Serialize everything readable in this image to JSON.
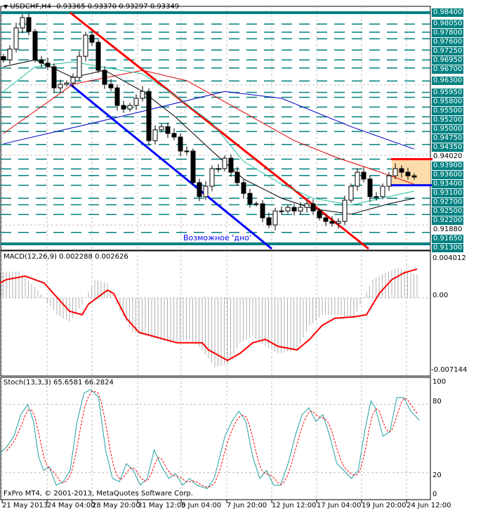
{
  "header": {
    "symbol": "USDCHF,H4",
    "ohlc": "0.93365 0.93370 0.93297 0.93349"
  },
  "colors": {
    "level": "#008080",
    "trend_red": "#ff0000",
    "trend_blue": "#0000ff",
    "ma_blue": "#0000cc",
    "ma_red": "#dd0000",
    "ma_green": "#20c0a0",
    "ma_black": "#000000",
    "box": "#fddcaa",
    "macd_hist": "#b0b0b0",
    "macd_signal": "#ff0000",
    "stoch_main": "#20a0a0",
    "stoch_signal": "#ff0000"
  },
  "annotation": "Возможное 'дно'",
  "copyright": "FxPro MT4, © 2001-2013, MetaQuotes Software Corp.",
  "chart_data": [
    {
      "type": "candlestick",
      "title": "USDCHF,H4",
      "ylim": [
        0.913,
        0.984
      ],
      "price_levels": [
        "0.98400",
        "0.98050",
        "0.97800",
        "0.97600",
        "0.97250",
        "0.96950",
        "0.96700",
        "0.96300",
        "0.95950",
        "0.95800",
        "0.95500",
        "0.95200",
        "0.95000",
        "0.94750",
        "0.94350",
        "0.93900",
        "0.93600",
        "0.93400",
        "0.93100",
        "0.92700",
        "0.92500",
        "0.92200",
        "0.91650",
        "0.91300"
      ],
      "axis_labels_plain": [
        "0.91880",
        "0.94020"
      ],
      "closes": [
        0.9695,
        0.9728,
        0.9793,
        0.9825,
        0.9782,
        0.9695,
        0.9685,
        0.9674,
        0.9609,
        0.962,
        0.9624,
        0.9641,
        0.9706,
        0.9771,
        0.9749,
        0.9663,
        0.962,
        0.9609,
        0.9555,
        0.9544,
        0.9555,
        0.9577,
        0.9598,
        0.9447,
        0.948,
        0.949,
        0.9469,
        0.9458,
        0.9415,
        0.9415,
        0.9318,
        0.9275,
        0.9307,
        0.9361,
        0.9361,
        0.9393,
        0.935,
        0.9318,
        0.9285,
        0.9253,
        0.9253,
        0.921,
        0.9188,
        0.9231,
        0.9231,
        0.9242,
        0.9231,
        0.9242,
        0.9253,
        0.9231,
        0.921,
        0.9199,
        0.9193,
        0.9199,
        0.9264,
        0.9307,
        0.935,
        0.9329,
        0.9275,
        0.9275,
        0.9307,
        0.9339,
        0.9361,
        0.935,
        0.9339,
        0.9335
      ],
      "moving_averages": [
        {
          "color": "ma_blue",
          "points": [
            [
              0,
              0.9437
            ],
            [
              19,
              0.9523
            ],
            [
              35,
              0.9598
            ],
            [
              44,
              0.9577
            ],
            [
              55,
              0.949
            ],
            [
              65,
              0.9421
            ]
          ]
        },
        {
          "color": "ma_red",
          "points": [
            [
              0,
              0.9469
            ],
            [
              11,
              0.962
            ],
            [
              22,
              0.9663
            ],
            [
              29,
              0.9631
            ],
            [
              38,
              0.9534
            ],
            [
              46,
              0.9447
            ],
            [
              53,
              0.9393
            ],
            [
              58,
              0.9361
            ],
            [
              65,
              0.9313
            ]
          ]
        },
        {
          "color": "ma_green",
          "points": [
            [
              0,
              0.9598
            ],
            [
              5,
              0.9674
            ],
            [
              11,
              0.9689
            ],
            [
              22,
              0.9652
            ],
            [
              27,
              0.9588
            ],
            [
              33,
              0.9501
            ],
            [
              38,
              0.9383
            ],
            [
              44,
              0.9313
            ],
            [
              49,
              0.927
            ],
            [
              55,
              0.9249
            ],
            [
              61,
              0.9275
            ],
            [
              65,
              0.9292
            ]
          ]
        },
        {
          "color": "ma_black",
          "points": [
            [
              0,
              0.9674
            ],
            [
              5,
              0.9695
            ],
            [
              11,
              0.9641
            ],
            [
              16,
              0.9663
            ],
            [
              22,
              0.9598
            ],
            [
              27,
              0.9523
            ],
            [
              33,
              0.9415
            ],
            [
              38,
              0.9329
            ],
            [
              44,
              0.927
            ],
            [
              49,
              0.9238
            ],
            [
              55,
              0.9221
            ],
            [
              61,
              0.9253
            ],
            [
              65,
              0.927
            ]
          ]
        }
      ],
      "x_tick_labels": [
        "21 May 2013",
        "24 May 04:00",
        "28 May 20:00",
        "31 May 12:00",
        "5 Jun 04:00",
        "7 Jun 20:00",
        "12 Jun 12:00",
        "17 Jun 04:00",
        "19 Jun 20:00",
        "24 Jun 12:00"
      ]
    },
    {
      "type": "bar+line",
      "title": "MACD(12,26,9) 0.002288 0.002626",
      "ylim": [
        -0.007144,
        0.004012
      ],
      "y_tick_labels": [
        "0.004012",
        "0.00",
        "-0.007144"
      ],
      "macd": [
        [
          0,
          0.00249
        ],
        [
          3,
          0.00263
        ],
        [
          6,
          0.00076
        ],
        [
          9,
          -0.00166
        ],
        [
          11,
          -0.00236
        ],
        [
          13,
          -0.00062
        ],
        [
          15,
          0.0018
        ],
        [
          17,
          0.00146
        ],
        [
          19,
          -0.00132
        ],
        [
          21,
          -0.0034
        ],
        [
          23,
          -0.00374
        ],
        [
          27,
          -0.00443
        ],
        [
          30,
          -0.00409
        ],
        [
          32,
          -0.00513
        ],
        [
          34,
          -0.00686
        ],
        [
          36,
          -0.00651
        ],
        [
          38,
          -0.00443
        ],
        [
          40,
          -0.00374
        ],
        [
          42,
          -0.00478
        ],
        [
          44,
          -0.00547
        ],
        [
          47,
          -0.00513
        ],
        [
          49,
          -0.0027
        ],
        [
          51,
          -0.00166
        ],
        [
          53,
          -0.00166
        ],
        [
          56,
          -0.00201
        ],
        [
          57,
          -0.00062
        ],
        [
          59,
          0.0018
        ],
        [
          61,
          0.00249
        ],
        [
          63,
          0.00298
        ],
        [
          66,
          0.00229
        ]
      ],
      "signal": [
        [
          0,
          0.00146
        ],
        [
          1,
          0.0018
        ],
        [
          4,
          0.00215
        ],
        [
          7,
          0.00146
        ],
        [
          9,
          7e-05
        ],
        [
          11,
          -0.00132
        ],
        [
          13,
          -0.00166
        ],
        [
          14,
          -0.00062
        ],
        [
          17,
          0.00076
        ],
        [
          18,
          0.00042
        ],
        [
          20,
          -0.00201
        ],
        [
          22,
          -0.0034
        ],
        [
          24,
          -0.00374
        ],
        [
          28,
          -0.00443
        ],
        [
          29,
          -0.00443
        ],
        [
          32,
          -0.00443
        ],
        [
          33,
          -0.00513
        ],
        [
          36,
          -0.00617
        ],
        [
          38,
          -0.00547
        ],
        [
          40,
          -0.00443
        ],
        [
          42,
          -0.00409
        ],
        [
          44,
          -0.00478
        ],
        [
          47,
          -0.00513
        ],
        [
          49,
          -0.00409
        ],
        [
          51,
          -0.0027
        ],
        [
          53,
          -0.00201
        ],
        [
          56,
          -0.00187
        ],
        [
          58,
          -0.00166
        ],
        [
          60,
          0.00042
        ],
        [
          62,
          0.0018
        ],
        [
          64,
          0.00249
        ],
        [
          66,
          0.00284
        ]
      ]
    },
    {
      "type": "line",
      "title": "Stoch(13,3,3) 65.6581 66.2824",
      "ylim": [
        0,
        100
      ],
      "y_tick_labels": [
        "100",
        "80",
        "20",
        "0"
      ],
      "levels": [
        80,
        20
      ],
      "k": [
        [
          0,
          37
        ],
        [
          1.1,
          43
        ],
        [
          2.2,
          52
        ],
        [
          3.3,
          71
        ],
        [
          4.4,
          80
        ],
        [
          5.3,
          65
        ],
        [
          6.1,
          34
        ],
        [
          6.9,
          22
        ],
        [
          7.8,
          25
        ],
        [
          8.9,
          9
        ],
        [
          10,
          12
        ],
        [
          11.1,
          22
        ],
        [
          12.2,
          65
        ],
        [
          13.3,
          90
        ],
        [
          14.4,
          93
        ],
        [
          15.6,
          86
        ],
        [
          16.7,
          40
        ],
        [
          17.8,
          15
        ],
        [
          18.9,
          12
        ],
        [
          20,
          28
        ],
        [
          21.1,
          22
        ],
        [
          22.2,
          9
        ],
        [
          23.3,
          15
        ],
        [
          24.4,
          40
        ],
        [
          25.6,
          25
        ],
        [
          26.7,
          15
        ],
        [
          27.8,
          19
        ],
        [
          28.9,
          9
        ],
        [
          30,
          15
        ],
        [
          31.1,
          9
        ],
        [
          32.8,
          6
        ],
        [
          33.9,
          15
        ],
        [
          35.6,
          52
        ],
        [
          36.7,
          65
        ],
        [
          37.8,
          74
        ],
        [
          38.9,
          65
        ],
        [
          40,
          34
        ],
        [
          41.1,
          15
        ],
        [
          42.2,
          22
        ],
        [
          43.3,
          9
        ],
        [
          44.4,
          9
        ],
        [
          45.6,
          28
        ],
        [
          46.7,
          52
        ],
        [
          47.8,
          71
        ],
        [
          48.9,
          77
        ],
        [
          50,
          65
        ],
        [
          51.1,
          71
        ],
        [
          52.2,
          52
        ],
        [
          53.3,
          28
        ],
        [
          54.4,
          22
        ],
        [
          55.6,
          15
        ],
        [
          56.7,
          22
        ],
        [
          57.8,
          59
        ],
        [
          58.7,
          83
        ],
        [
          59.4,
          77
        ],
        [
          60.6,
          52
        ],
        [
          61.7,
          56
        ],
        [
          62.8,
          86
        ],
        [
          63.9,
          86
        ],
        [
          65,
          74
        ],
        [
          66.4,
          66
        ]
      ]
    }
  ]
}
